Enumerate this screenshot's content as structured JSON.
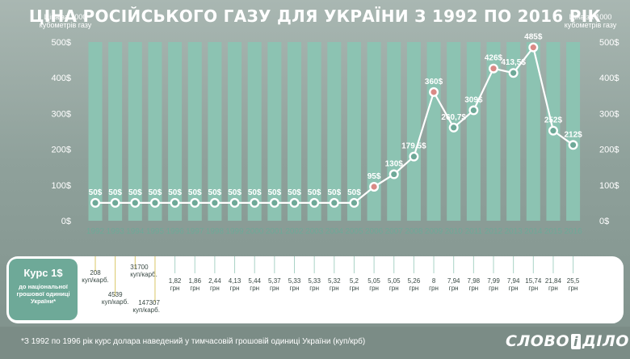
{
  "header": {
    "title": "ЦІНА РОСІЙСЬКОГО ГАЗУ ДЛЯ УКРАЇНИ З 1992 ПО 2016 РІК",
    "left_axis_title": "Ціна за 1000 кубометрів газу",
    "right_axis_title": "Ціна за 1000 кубометрів газу"
  },
  "chart_data": {
    "type": "line",
    "title": "ЦІНА РОСІЙСЬКОГО ГАЗУ ДЛЯ УКРАЇНИ З 1992 ПО 2016 РІК",
    "ylabel": "Ціна за 1000 кубометрів газу",
    "xlabel": "",
    "ylim": [
      0,
      500
    ],
    "y_ticks": [
      "0$",
      "100$",
      "200$",
      "300$",
      "400$",
      "500$"
    ],
    "grid": false,
    "x": [
      "1992",
      "1993",
      "1994",
      "1995",
      "1996",
      "1997",
      "1998",
      "1999",
      "2000",
      "2001",
      "2002",
      "2003",
      "2004",
      "2005",
      "2006",
      "2007",
      "2008",
      "2009",
      "2010",
      "2011",
      "2012",
      "2013",
      "2014",
      "2015",
      "2016"
    ],
    "values": [
      50,
      50,
      50,
      50,
      50,
      50,
      50,
      50,
      50,
      50,
      50,
      50,
      50,
      50,
      95,
      130,
      179.5,
      360,
      260.7,
      309,
      426,
      413.5,
      485,
      252,
      212
    ],
    "data_labels": [
      "50$",
      "50$",
      "50$",
      "50$",
      "50$",
      "50$",
      "50$",
      "50$",
      "50$",
      "50$",
      "50$",
      "50$",
      "50$",
      "50$",
      "95$",
      "130$",
      "179,5$",
      "360$",
      "260,7$",
      "309$",
      "426$",
      "413,5$",
      "485$",
      "252$",
      "212$"
    ],
    "highlighted_years": [
      "2006",
      "2009",
      "2012",
      "2014"
    ]
  },
  "exchange_rate": {
    "title": "Курс 1$",
    "subtitle": "до національної грошової одиниці України*",
    "values": [
      {
        "year": "1992",
        "line1": "208",
        "line2": "куп/карб."
      },
      {
        "year": "1993",
        "line1": "4539",
        "line2": "куп/карб."
      },
      {
        "year": "1994",
        "line1": "31700",
        "line2": "куп/карб."
      },
      {
        "year": "1995",
        "line1": "147307",
        "line2": "куп/карб."
      },
      {
        "year": "1996",
        "line1": "1,82",
        "line2": "грн"
      },
      {
        "year": "1997",
        "line1": "1,86",
        "line2": "грн"
      },
      {
        "year": "1998",
        "line1": "2,44",
        "line2": "грн"
      },
      {
        "year": "1999",
        "line1": "4,13",
        "line2": "грн"
      },
      {
        "year": "2000",
        "line1": "5,44",
        "line2": "грн"
      },
      {
        "year": "2001",
        "line1": "5,37",
        "line2": "грн"
      },
      {
        "year": "2002",
        "line1": "5,33",
        "line2": "грн"
      },
      {
        "year": "2003",
        "line1": "5,33",
        "line2": "грн"
      },
      {
        "year": "2004",
        "line1": "5,32",
        "line2": "грн"
      },
      {
        "year": "2005",
        "line1": "5,2",
        "line2": "грн"
      },
      {
        "year": "2006",
        "line1": "5,05",
        "line2": "грн"
      },
      {
        "year": "2007",
        "line1": "5,05",
        "line2": "грн"
      },
      {
        "year": "2008",
        "line1": "5,26",
        "line2": "грн"
      },
      {
        "year": "2009",
        "line1": "8",
        "line2": "грн"
      },
      {
        "year": "2010",
        "line1": "7,94",
        "line2": "грн"
      },
      {
        "year": "2011",
        "line1": "7,98",
        "line2": "грн"
      },
      {
        "year": "2012",
        "line1": "7,99",
        "line2": "грн"
      },
      {
        "year": "2013",
        "line1": "7,94",
        "line2": "грн"
      },
      {
        "year": "2014",
        "line1": "15,74",
        "line2": "грн"
      },
      {
        "year": "2015",
        "line1": "21,84",
        "line2": "грн"
      },
      {
        "year": "2016",
        "line1": "25,5",
        "line2": "грн"
      }
    ]
  },
  "footer": {
    "footnote": "*З 1992 по 1996 рік курс долара наведений у тимчасовій грошовій одиниці України (куп/крб)",
    "logo_part1": "СЛОВО",
    "logo_amp": "і",
    "logo_part2": "ДІЛО"
  },
  "colors": {
    "bar": "#8cc3b2",
    "line": "#ffffff",
    "marker": "#6ea998",
    "marker_highlight": "#d98a86",
    "accent": "#6ea998",
    "year_label": "#6ea998"
  }
}
